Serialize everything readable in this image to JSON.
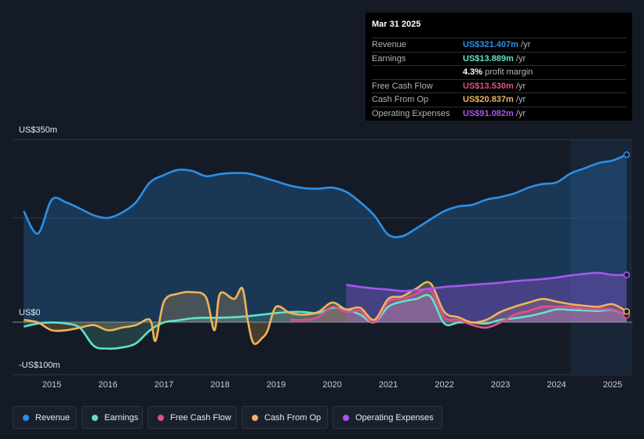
{
  "tooltip": {
    "date": "Mar 31 2025",
    "rows": [
      {
        "label": "Revenue",
        "value": "US$321.407m",
        "unit": "/yr",
        "color": "#2d8fe6"
      },
      {
        "label": "Earnings",
        "value": "US$13.889m",
        "unit": "/yr",
        "color": "#5fe3c8"
      },
      {
        "label": "",
        "value": "4.3%",
        "unit": "profit margin",
        "color": "#ffffff"
      },
      {
        "label": "Free Cash Flow",
        "value": "US$13.530m",
        "unit": "/yr",
        "color": "#e0508a"
      },
      {
        "label": "Cash From Op",
        "value": "US$20.837m",
        "unit": "/yr",
        "color": "#f0b45a"
      },
      {
        "label": "Operating Expenses",
        "value": "US$91.082m",
        "unit": "/yr",
        "color": "#a855f0"
      }
    ]
  },
  "axis": {
    "y_top_label": "US$350m",
    "y_zero_label": "US$0",
    "y_bottom_label": "-US$100m",
    "x_ticks": [
      "2015",
      "2016",
      "2017",
      "2018",
      "2019",
      "2020",
      "2021",
      "2022",
      "2023",
      "2024",
      "2025"
    ]
  },
  "legend": [
    {
      "label": "Revenue",
      "color": "#2d8fe6"
    },
    {
      "label": "Earnings",
      "color": "#5fe3c8"
    },
    {
      "label": "Free Cash Flow",
      "color": "#e0508a"
    },
    {
      "label": "Cash From Op",
      "color": "#f0b45a"
    },
    {
      "label": "Operating Expenses",
      "color": "#a855f0"
    }
  ],
  "chart_data": {
    "type": "area",
    "ylim": [
      -100,
      350
    ],
    "x_unit": "year",
    "xlim": [
      2014.3,
      2025.35
    ],
    "highlight_start": 2024.25,
    "series": [
      {
        "name": "Revenue",
        "color": "#2d8fe6",
        "x": [
          2014.5,
          2014.75,
          2015.0,
          2015.25,
          2015.5,
          2015.75,
          2016.0,
          2016.25,
          2016.5,
          2016.75,
          2017.0,
          2017.25,
          2017.5,
          2017.75,
          2018.0,
          2018.25,
          2018.5,
          2018.75,
          2019.0,
          2019.25,
          2019.5,
          2019.75,
          2020.0,
          2020.25,
          2020.5,
          2020.75,
          2021.0,
          2021.25,
          2021.5,
          2021.75,
          2022.0,
          2022.25,
          2022.5,
          2022.75,
          2023.0,
          2023.25,
          2023.5,
          2023.75,
          2024.0,
          2024.25,
          2024.5,
          2024.75,
          2025.0,
          2025.25
        ],
        "values": [
          213,
          170,
          235,
          230,
          218,
          205,
          200,
          210,
          230,
          268,
          282,
          292,
          290,
          280,
          284,
          286,
          285,
          278,
          270,
          262,
          257,
          256,
          258,
          250,
          230,
          205,
          168,
          165,
          180,
          197,
          213,
          222,
          225,
          235,
          240,
          247,
          258,
          265,
          268,
          285,
          295,
          305,
          310,
          321
        ]
      },
      {
        "name": "Earnings",
        "color": "#5fe3c8",
        "x": [
          2014.5,
          2014.75,
          2015.0,
          2015.25,
          2015.5,
          2015.75,
          2016.0,
          2016.25,
          2016.5,
          2016.75,
          2017.0,
          2017.25,
          2017.5,
          2017.75,
          2018.0,
          2018.25,
          2018.5,
          2018.75,
          2019.0,
          2019.25,
          2019.5,
          2019.75,
          2020.0,
          2020.25,
          2020.5,
          2020.75,
          2021.0,
          2021.25,
          2021.5,
          2021.75,
          2022.0,
          2022.25,
          2022.5,
          2022.75,
          2023.0,
          2023.25,
          2023.5,
          2023.75,
          2024.0,
          2024.25,
          2024.5,
          2024.75,
          2025.0,
          2025.25
        ],
        "values": [
          -8,
          -2,
          0,
          -2,
          -10,
          -45,
          -50,
          -48,
          -40,
          -15,
          0,
          4,
          8,
          9,
          9,
          10,
          12,
          15,
          18,
          20,
          20,
          18,
          28,
          25,
          15,
          0,
          30,
          40,
          45,
          50,
          -2,
          0,
          0,
          -2,
          5,
          8,
          12,
          18,
          25,
          24,
          23,
          22,
          24,
          14
        ]
      },
      {
        "name": "Free Cash Flow",
        "color": "#e0508a",
        "x": [
          2019.25,
          2019.5,
          2019.75,
          2020.0,
          2020.25,
          2020.5,
          2020.75,
          2021.0,
          2021.25,
          2021.5,
          2021.75,
          2022.0,
          2022.25,
          2022.5,
          2022.75,
          2023.0,
          2023.25,
          2023.5,
          2023.75,
          2024.0,
          2024.25,
          2024.5,
          2024.75,
          2025.0,
          2025.25
        ],
        "values": [
          5,
          5,
          10,
          30,
          20,
          22,
          0,
          40,
          45,
          55,
          62,
          10,
          5,
          -5,
          -10,
          0,
          15,
          22,
          30,
          30,
          30,
          26,
          25,
          25,
          14
        ]
      },
      {
        "name": "Cash From Op",
        "color": "#f0b45a",
        "x": [
          2014.5,
          2014.75,
          2015.0,
          2015.25,
          2015.5,
          2015.75,
          2016.0,
          2016.25,
          2016.5,
          2016.75,
          2016.85,
          2017.0,
          2017.25,
          2017.5,
          2017.75,
          2017.9,
          2018.0,
          2018.25,
          2018.4,
          2018.5,
          2018.6,
          2018.75,
          2018.85,
          2019.0,
          2019.25,
          2019.5,
          2019.75,
          2020.0,
          2020.25,
          2020.5,
          2020.75,
          2021.0,
          2021.25,
          2021.5,
          2021.75,
          2022.0,
          2022.25,
          2022.5,
          2022.75,
          2023.0,
          2023.25,
          2023.5,
          2023.75,
          2024.0,
          2024.25,
          2024.5,
          2024.75,
          2025.0,
          2025.25
        ],
        "values": [
          5,
          0,
          -15,
          -15,
          -10,
          -5,
          -15,
          -10,
          -5,
          5,
          -35,
          40,
          55,
          58,
          48,
          -15,
          55,
          45,
          65,
          0,
          -40,
          -30,
          -15,
          30,
          18,
          15,
          20,
          38,
          25,
          28,
          5,
          45,
          50,
          65,
          75,
          20,
          10,
          0,
          5,
          20,
          30,
          38,
          45,
          40,
          35,
          32,
          30,
          35,
          21
        ]
      },
      {
        "name": "Operating Expenses",
        "color": "#a855f0",
        "x": [
          2020.25,
          2020.5,
          2020.75,
          2021.0,
          2021.25,
          2021.5,
          2021.75,
          2022.0,
          2022.25,
          2022.5,
          2022.75,
          2023.0,
          2023.25,
          2023.5,
          2023.75,
          2024.0,
          2024.25,
          2024.5,
          2024.75,
          2025.0,
          2025.25
        ],
        "values": [
          72,
          68,
          65,
          63,
          60,
          62,
          65,
          68,
          70,
          72,
          74,
          76,
          79,
          81,
          83,
          86,
          90,
          93,
          95,
          91,
          91
        ]
      }
    ]
  }
}
